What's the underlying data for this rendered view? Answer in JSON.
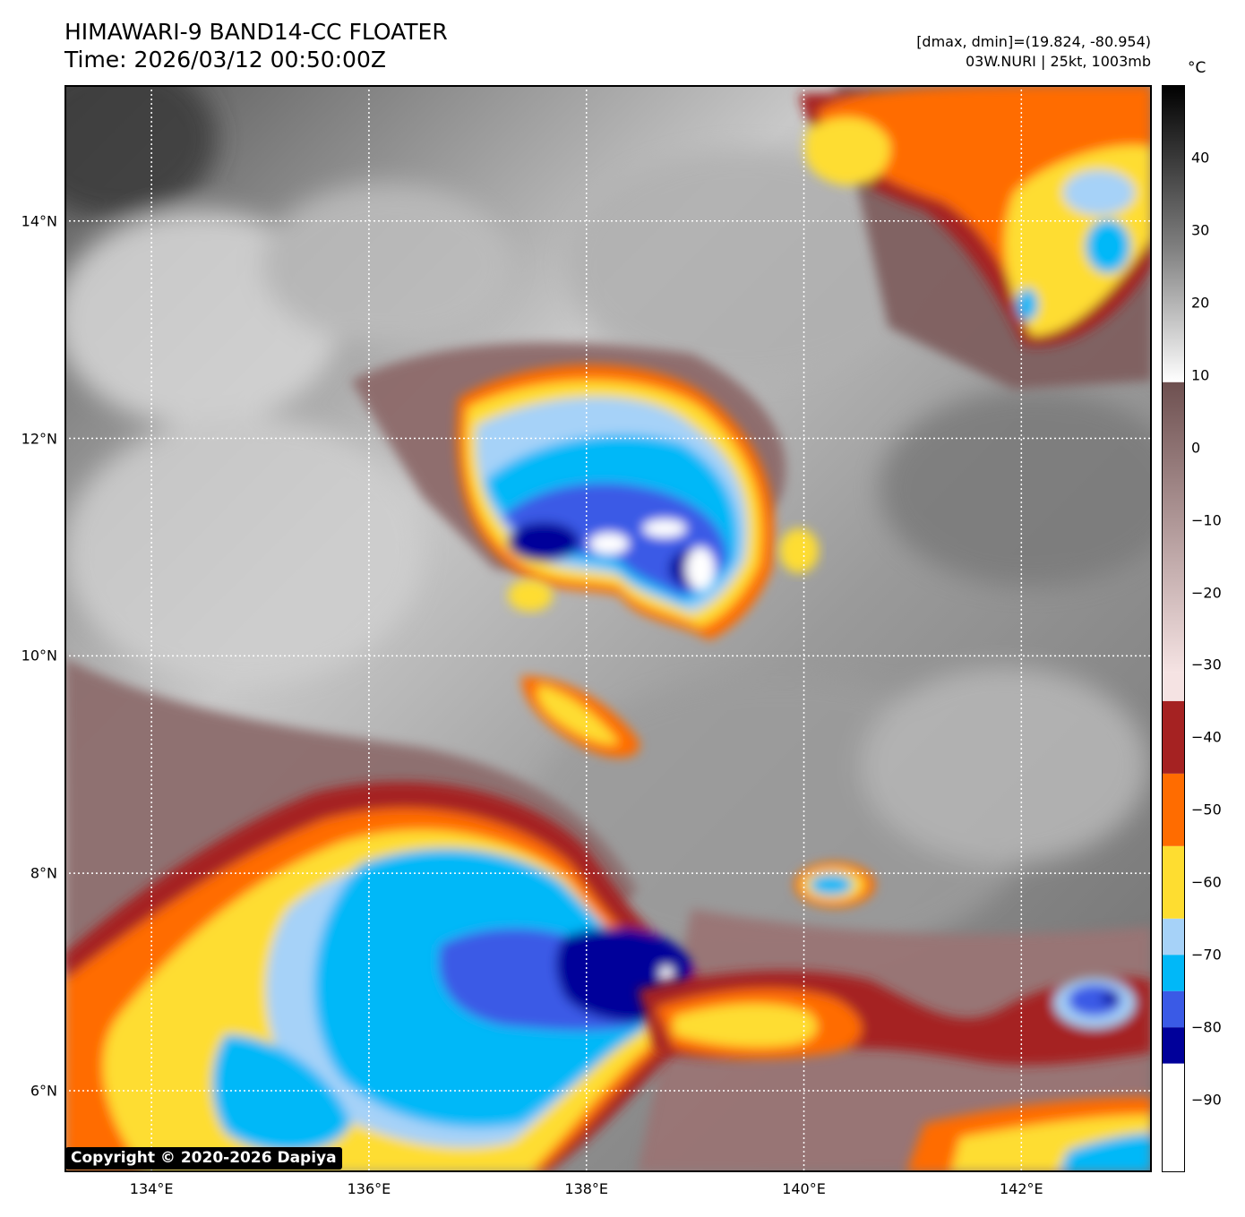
{
  "title": "HIMAWARI-9 BAND14-CC FLOATER",
  "time": "Time: 2026/03/12 00:50:00Z",
  "info": {
    "line1": "[dmax, dmin]=(19.824, -80.954)",
    "line2": "03W.NURI | 25kt, 1003mb"
  },
  "colorbar": {
    "unit": "°C",
    "ticks": [
      "40",
      "30",
      "20",
      "10",
      "0",
      "−10",
      "−20",
      "−30",
      "−40",
      "−50",
      "−60",
      "−70",
      "−80",
      "−90"
    ],
    "tick_values": [
      40,
      30,
      20,
      10,
      0,
      -10,
      -20,
      -30,
      -40,
      -50,
      -60,
      -70,
      -80,
      -90
    ],
    "range": [
      -100,
      50
    ],
    "segments": [
      {
        "from": -100,
        "to": -85,
        "color": "#ffffff"
      },
      {
        "from": -85,
        "to": -80,
        "color": "#00009a"
      },
      {
        "from": -80,
        "to": -75,
        "color": "#3a5ae6"
      },
      {
        "from": -75,
        "to": -70,
        "color": "#00b8f8"
      },
      {
        "from": -70,
        "to": -65,
        "color": "#a6d2f8"
      },
      {
        "from": -65,
        "to": -55,
        "color": "#fedd30"
      },
      {
        "from": -55,
        "to": -45,
        "color": "#ff6c00"
      },
      {
        "from": -45,
        "to": -35,
        "color": "#a52222"
      }
    ]
  },
  "axes": {
    "lon_ticks": [
      "134°E",
      "136°E",
      "138°E",
      "140°E",
      "142°E"
    ],
    "lon_values": [
      134,
      136,
      138,
      140,
      142
    ],
    "lat_ticks": [
      "14°N",
      "12°N",
      "10°N",
      "8°N",
      "6°N"
    ],
    "lat_values": [
      14,
      12,
      10,
      8,
      6
    ],
    "lon_range": [
      133.2,
      143.2
    ],
    "lat_range": [
      5.25,
      15.25
    ]
  },
  "copyright": "Copyright © 2020-2026 Dapiya",
  "image": {
    "description_colors": {
      "cold_cloud_top": "#00b8f8",
      "very_cold": "#00009a",
      "warm_surface": "#6a6a6a"
    }
  }
}
